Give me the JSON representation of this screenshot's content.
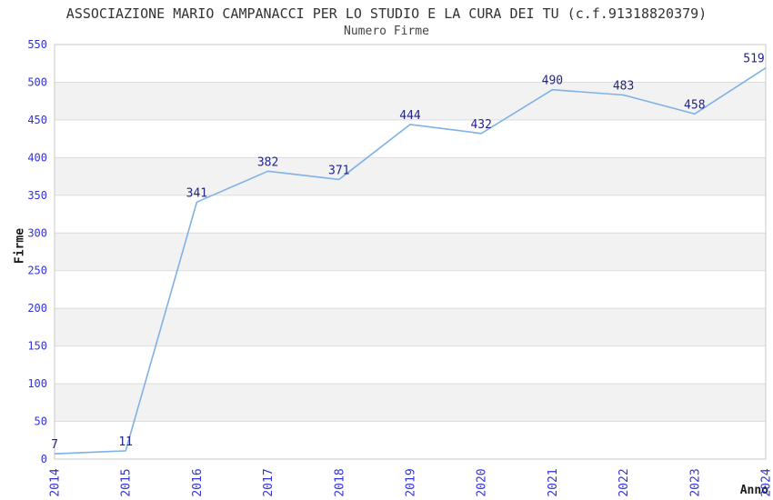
{
  "chart_data": {
    "type": "line",
    "title": "ASSOCIAZIONE MARIO CAMPANACCI PER LO STUDIO E LA CURA DEI TU (c.f.91318820379)",
    "subtitle": "Numero Firme",
    "xlabel": "Anno",
    "ylabel": "Firme",
    "categories": [
      "2014",
      "2015",
      "2016",
      "2017",
      "2018",
      "2019",
      "2020",
      "2021",
      "2022",
      "2023",
      "2024"
    ],
    "values": [
      7,
      11,
      341,
      382,
      371,
      444,
      432,
      490,
      483,
      458,
      519
    ],
    "ylim": [
      0,
      550
    ],
    "ytick_step": 50,
    "yticks": [
      0,
      50,
      100,
      150,
      200,
      250,
      300,
      350,
      400,
      450,
      500,
      550
    ],
    "grid": "horizontal gridlines with alternating shaded bands",
    "legend": "none",
    "colors": {
      "line": "#7FB2E5",
      "data_label": "#23238E",
      "axis_tick_label": "#3232DC",
      "band_shade": "#F2F2F2",
      "gridline": "#DCDCDC",
      "plot_border": "#C8C8C8",
      "title_text": "#333333",
      "background": "#FFFFFF"
    }
  }
}
